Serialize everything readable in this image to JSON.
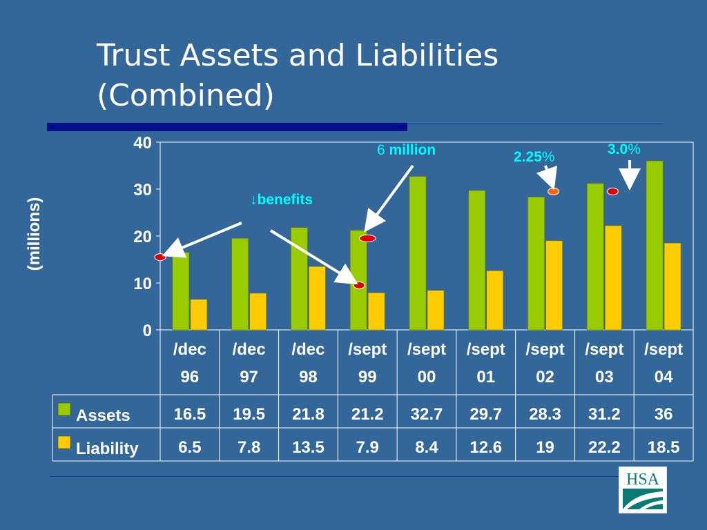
{
  "slide": {
    "title_line1": "Trust Assets and Liabilities",
    "title_line2": "(Combined)",
    "logo_text": "HSA"
  },
  "annotations": {
    "benefits_arrow": "↓",
    "benefits": "benefits",
    "million_num": "6",
    "million_word": "million",
    "pct1_num": "2.25",
    "pct1_sym": "%",
    "pct2_num": "3.0",
    "pct2_sym": "%"
  },
  "colors": {
    "background": "#336699",
    "assets": "#99cc00",
    "liability": "#ffcc00",
    "annotation": "#00ffff",
    "marker_red": "#e00000",
    "marker_orange": "#ff6600"
  },
  "chart_data": {
    "type": "bar",
    "ylabel": "(millions)",
    "ylim": [
      0,
      40
    ],
    "yticks": [
      0,
      10,
      20,
      30,
      40
    ],
    "categories": [
      [
        "/dec",
        "96"
      ],
      [
        "/dec",
        "97"
      ],
      [
        "/dec",
        "98"
      ],
      [
        "/sept",
        "99"
      ],
      [
        "/sept",
        "00"
      ],
      [
        "/sept",
        "01"
      ],
      [
        "/sept",
        "02"
      ],
      [
        "/sept",
        "03"
      ],
      [
        "/sept",
        "04"
      ]
    ],
    "series": [
      {
        "name": "Assets",
        "color": "#99cc00",
        "values": [
          16.5,
          19.5,
          21.8,
          21.2,
          32.7,
          29.7,
          28.3,
          31.2,
          36
        ]
      },
      {
        "name": "Liability",
        "color": "#ffcc00",
        "values": [
          6.5,
          7.8,
          13.5,
          7.9,
          8.4,
          12.6,
          19,
          22.2,
          18.5
        ]
      }
    ],
    "value_labels": [
      [
        "16.5",
        "19.5",
        "21.8",
        "21.2",
        "32.7",
        "29.7",
        "28.3",
        "31.2",
        "36"
      ],
      [
        "6.5",
        "7.8",
        "13.5",
        "7.9",
        "8.4",
        "12.6",
        "19",
        "22.2",
        "18.5"
      ]
    ],
    "grid": false,
    "legend": "data table below chart",
    "markers": [
      {
        "x_index": 0,
        "y": 15.5,
        "color": "#e00000"
      },
      {
        "x_index": 3,
        "y": 9.5,
        "color": "#e00000"
      },
      {
        "x_index": 3,
        "y": 19.5,
        "color": "#e00000"
      },
      {
        "x_index": 6,
        "y": 29.5,
        "color": "#ff6600"
      },
      {
        "x_index": 7,
        "y": 29.5,
        "color": "#e00000"
      }
    ]
  }
}
